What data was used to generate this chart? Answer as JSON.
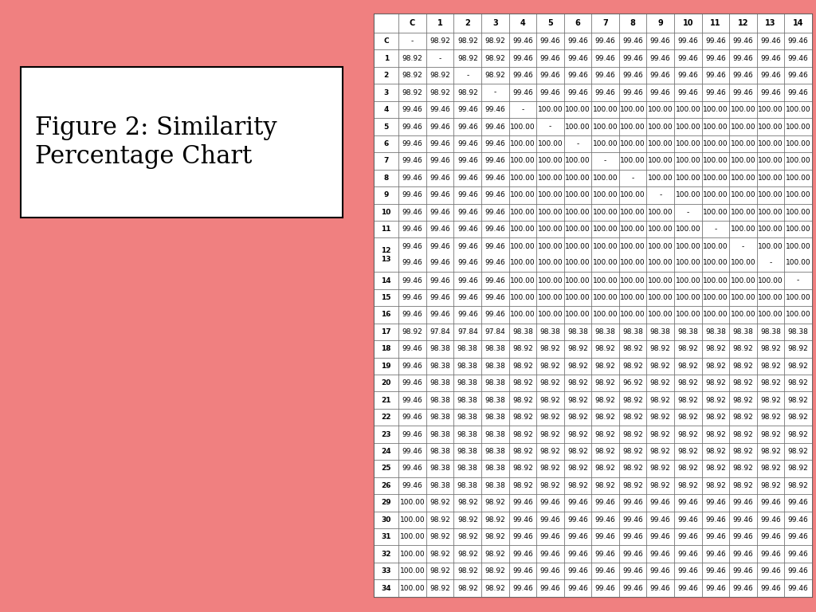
{
  "title": "Figure 2: Similarity\nPercentage Chart",
  "background_color": "#F08080",
  "table_bg": "#FFFFFF",
  "col_headers": [
    "C",
    "1",
    "2",
    "3",
    "4",
    "5",
    "6",
    "7",
    "8",
    "9",
    "10",
    "11",
    "12",
    "13",
    "14"
  ],
  "row_headers": [
    "C",
    "1",
    "2",
    "3",
    "4",
    "5",
    "6",
    "7",
    "8",
    "9",
    "10",
    "11",
    "12/13",
    "14",
    "15",
    "16",
    "17",
    "18",
    "19",
    "20",
    "21",
    "22",
    "23",
    "24",
    "25",
    "26",
    "29",
    "30",
    "31",
    "32",
    "33",
    "34"
  ],
  "row_labels_display": [
    "C",
    "1",
    "2",
    "3",
    "4",
    "5",
    "6",
    "7",
    "8",
    "9",
    "10",
    "11",
    "12\n13",
    "14",
    "15",
    "16",
    "17",
    "18",
    "19",
    "20",
    "21",
    "22",
    "23",
    "24",
    "25",
    "26",
    "29",
    "30",
    "31",
    "32",
    "33",
    "34"
  ],
  "data": [
    [
      "-",
      "98.92",
      "98.92",
      "98.92",
      "99.46",
      "99.46",
      "99.46",
      "99.46",
      "99.46",
      "99.46",
      "99.46",
      "99.46",
      "99.46",
      "99.46",
      "99.46"
    ],
    [
      "98.92",
      "-",
      "98.92",
      "98.92",
      "99.46",
      "99.46",
      "99.46",
      "99.46",
      "99.46",
      "99.46",
      "99.46",
      "99.46",
      "99.46",
      "99.46",
      "99.46"
    ],
    [
      "98.92",
      "98.92",
      "-",
      "98.92",
      "99.46",
      "99.46",
      "99.46",
      "99.46",
      "99.46",
      "99.46",
      "99.46",
      "99.46",
      "99.46",
      "99.46",
      "99.46"
    ],
    [
      "98.92",
      "98.92",
      "98.92",
      "-",
      "99.46",
      "99.46",
      "99.46",
      "99.46",
      "99.46",
      "99.46",
      "99.46",
      "99.46",
      "99.46",
      "99.46",
      "99.46"
    ],
    [
      "99.46",
      "99.46",
      "99.46",
      "99.46",
      "-",
      "100.00",
      "100.00",
      "100.00",
      "100.00",
      "100.00",
      "100.00",
      "100.00",
      "100.00",
      "100.00",
      "100.00"
    ],
    [
      "99.46",
      "99.46",
      "99.46",
      "99.46",
      "100.00",
      "-",
      "100.00",
      "100.00",
      "100.00",
      "100.00",
      "100.00",
      "100.00",
      "100.00",
      "100.00",
      "100.00"
    ],
    [
      "99.46",
      "99.46",
      "99.46",
      "99.46",
      "100.00",
      "100.00",
      "-",
      "100.00",
      "100.00",
      "100.00",
      "100.00",
      "100.00",
      "100.00",
      "100.00",
      "100.00"
    ],
    [
      "99.46",
      "99.46",
      "99.46",
      "99.46",
      "100.00",
      "100.00",
      "100.00",
      "-",
      "100.00",
      "100.00",
      "100.00",
      "100.00",
      "100.00",
      "100.00",
      "100.00"
    ],
    [
      "99.46",
      "99.46",
      "99.46",
      "99.46",
      "100.00",
      "100.00",
      "100.00",
      "100.00",
      "-",
      "100.00",
      "100.00",
      "100.00",
      "100.00",
      "100.00",
      "100.00"
    ],
    [
      "99.46",
      "99.46",
      "99.46",
      "99.46",
      "100.00",
      "100.00",
      "100.00",
      "100.00",
      "100.00",
      "-",
      "100.00",
      "100.00",
      "100.00",
      "100.00",
      "100.00"
    ],
    [
      "99.46",
      "99.46",
      "99.46",
      "99.46",
      "100.00",
      "100.00",
      "100.00",
      "100.00",
      "100.00",
      "100.00",
      "-",
      "100.00",
      "100.00",
      "100.00",
      "100.00"
    ],
    [
      "99.46",
      "99.46",
      "99.46",
      "99.46",
      "100.00",
      "100.00",
      "100.00",
      "100.00",
      "100.00",
      "100.00",
      "100.00",
      "-",
      "100.00",
      "100.00",
      "100.00"
    ],
    [
      "99.46\n99.46",
      "99.46\n99.46",
      "99.46\n99.46",
      "99.46\n99.46",
      "100.00\n100.00",
      "100.00\n100.00",
      "100.00\n100.00",
      "100.00\n100.00",
      "100.00\n100.00",
      "100.00\n100.00",
      "100.00\n100.00",
      "100.00\n100.00",
      "-\n100.00",
      "100.00\n-",
      "100.00\n100.00"
    ],
    [
      "99.46",
      "99.46",
      "99.46",
      "99.46",
      "100.00",
      "100.00",
      "100.00",
      "100.00",
      "100.00",
      "100.00",
      "100.00",
      "100.00",
      "100.00",
      "100.00",
      "-"
    ],
    [
      "99.46",
      "99.46",
      "99.46",
      "99.46",
      "100.00",
      "100.00",
      "100.00",
      "100.00",
      "100.00",
      "100.00",
      "100.00",
      "100.00",
      "100.00",
      "100.00",
      "100.00"
    ],
    [
      "99.46",
      "99.46",
      "99.46",
      "99.46",
      "100.00",
      "100.00",
      "100.00",
      "100.00",
      "100.00",
      "100.00",
      "100.00",
      "100.00",
      "100.00",
      "100.00",
      "100.00"
    ],
    [
      "98.92",
      "97.84",
      "97.84",
      "97.84",
      "98.38",
      "98.38",
      "98.38",
      "98.38",
      "98.38",
      "98.38",
      "98.38",
      "98.38",
      "98.38",
      "98.38",
      "98.38"
    ],
    [
      "99.46",
      "98.38",
      "98.38",
      "98.38",
      "98.92",
      "98.92",
      "98.92",
      "98.92",
      "98.92",
      "98.92",
      "98.92",
      "98.92",
      "98.92",
      "98.92",
      "98.92"
    ],
    [
      "99.46",
      "98.38",
      "98.38",
      "98.38",
      "98.92",
      "98.92",
      "98.92",
      "98.92",
      "98.92",
      "98.92",
      "98.92",
      "98.92",
      "98.92",
      "98.92",
      "98.92"
    ],
    [
      "99.46",
      "98.38",
      "98.38",
      "98.38",
      "98.92",
      "98.92",
      "98.92",
      "98.92",
      "96.92",
      "98.92",
      "98.92",
      "98.92",
      "98.92",
      "98.92",
      "98.92"
    ],
    [
      "99.46",
      "98.38",
      "98.38",
      "98.38",
      "98.92",
      "98.92",
      "98.92",
      "98.92",
      "98.92",
      "98.92",
      "98.92",
      "98.92",
      "98.92",
      "98.92",
      "98.92"
    ],
    [
      "99.46",
      "98.38",
      "98.38",
      "98.38",
      "98.92",
      "98.92",
      "98.92",
      "98.92",
      "98.92",
      "98.92",
      "98.92",
      "98.92",
      "98.92",
      "98.92",
      "98.92"
    ],
    [
      "99.46",
      "98.38",
      "98.38",
      "98.38",
      "98.92",
      "98.92",
      "98.92",
      "98.92",
      "98.92",
      "98.92",
      "98.92",
      "98.92",
      "98.92",
      "98.92",
      "98.92"
    ],
    [
      "99.46",
      "98.38",
      "98.38",
      "98.38",
      "98.92",
      "98.92",
      "98.92",
      "98.92",
      "98.92",
      "98.92",
      "98.92",
      "98.92",
      "98.92",
      "98.92",
      "98.92"
    ],
    [
      "99.46",
      "98.38",
      "98.38",
      "98.38",
      "98.92",
      "98.92",
      "98.92",
      "98.92",
      "98.92",
      "98.92",
      "98.92",
      "98.92",
      "98.92",
      "98.92",
      "98.92"
    ],
    [
      "99.46",
      "98.38",
      "98.38",
      "98.38",
      "98.92",
      "98.92",
      "98.92",
      "98.92",
      "98.92",
      "98.92",
      "98.92",
      "98.92",
      "98.92",
      "98.92",
      "98.92"
    ],
    [
      "100.00",
      "98.92",
      "98.92",
      "98.92",
      "99.46",
      "99.46",
      "99.46",
      "99.46",
      "99.46",
      "99.46",
      "99.46",
      "99.46",
      "99.46",
      "99.46",
      "99.46"
    ],
    [
      "100.00",
      "98.92",
      "98.92",
      "98.92",
      "99.46",
      "99.46",
      "99.46",
      "99.46",
      "99.46",
      "99.46",
      "99.46",
      "99.46",
      "99.46",
      "99.46",
      "99.46"
    ],
    [
      "100.00",
      "98.92",
      "98.92",
      "98.92",
      "99.46",
      "99.46",
      "99.46",
      "99.46",
      "99.46",
      "99.46",
      "99.46",
      "99.46",
      "99.46",
      "99.46",
      "99.46"
    ],
    [
      "100.00",
      "98.92",
      "98.92",
      "98.92",
      "99.46",
      "99.46",
      "99.46",
      "99.46",
      "99.46",
      "99.46",
      "99.46",
      "99.46",
      "99.46",
      "99.46",
      "99.46"
    ],
    [
      "100.00",
      "98.92",
      "98.92",
      "98.92",
      "99.46",
      "99.46",
      "99.46",
      "99.46",
      "99.46",
      "99.46",
      "99.46",
      "99.46",
      "99.46",
      "99.46",
      "99.46"
    ],
    [
      "100.00",
      "98.92",
      "98.92",
      "98.92",
      "99.46",
      "99.46",
      "99.46",
      "99.46",
      "99.46",
      "99.46",
      "99.46",
      "99.46",
      "99.46",
      "99.46",
      "99.46"
    ]
  ],
  "double_row_idx": 12,
  "double_row_top": [
    "99.46",
    "99.46",
    "99.46",
    "99.46",
    "100.00",
    "100.00",
    "100.00",
    "100.00",
    "100.00",
    "100.00",
    "100.00",
    "100.00",
    "-",
    "100.00",
    "100.00"
  ],
  "double_row_bot": [
    "99.46",
    "99.46",
    "99.46",
    "99.46",
    "100.00",
    "100.00",
    "100.00",
    "100.00",
    "100.00",
    "100.00",
    "100.00",
    "100.00",
    "100.00",
    "-",
    "100.00"
  ]
}
